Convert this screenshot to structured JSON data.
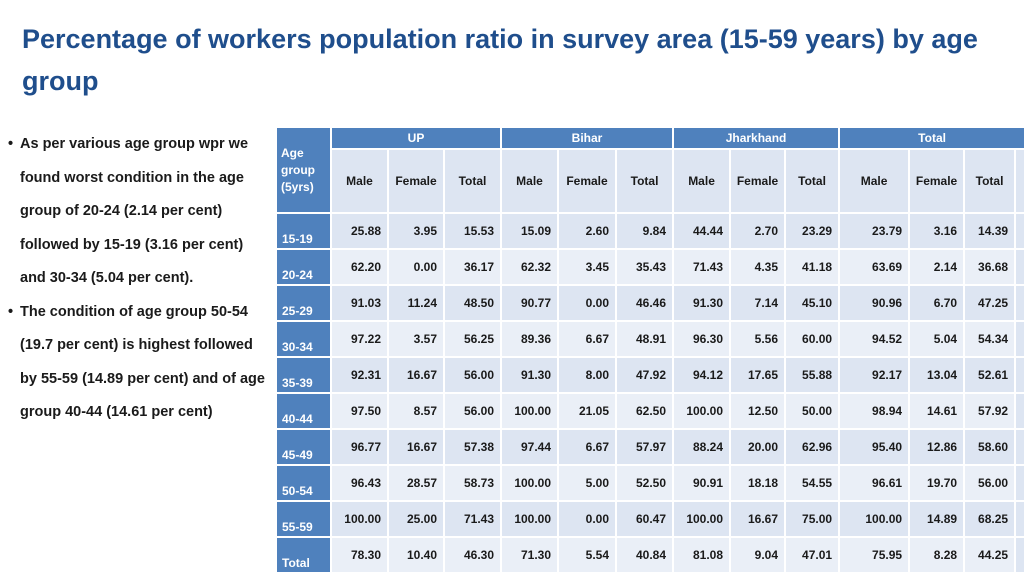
{
  "title": "Percentage of workers population ratio in survey area (15-59 years) by age group",
  "bullets": [
    "As per various age group wpr we found worst condition in the age group of 20-24 (2.14 per cent) followed by 15-19 (3.16 per cent) and 30-34 (5.04 per cent).",
    "The condition of age group 50-54 (19.7 per cent) is highest followed by 55-59 (14.89 per cent) and of age group 40-44 (14.61 per cent)"
  ],
  "table": {
    "age_header": "Age group (5yrs)",
    "states": [
      "UP",
      "Bihar",
      "Jharkhand",
      "Total"
    ],
    "sub_headers": [
      "Male",
      "Female",
      "Total"
    ],
    "rows": [
      {
        "age": "15-19",
        "values": [
          "25.88",
          "3.95",
          "15.53",
          "15.09",
          "2.60",
          "9.84",
          "44.44",
          "2.70",
          "23.29",
          "23.79",
          "3.16",
          "14.39"
        ]
      },
      {
        "age": "20-24",
        "values": [
          "62.20",
          "0.00",
          "36.17",
          "62.32",
          "3.45",
          "35.43",
          "71.43",
          "4.35",
          "41.18",
          "63.69",
          "2.14",
          "36.68"
        ]
      },
      {
        "age": "25-29",
        "values": [
          "91.03",
          "11.24",
          "48.50",
          "90.77",
          "0.00",
          "46.46",
          "91.30",
          "7.14",
          "45.10",
          "90.96",
          "6.70",
          "47.25"
        ]
      },
      {
        "age": "30-34",
        "values": [
          "97.22",
          "3.57",
          "56.25",
          "89.36",
          "6.67",
          "48.91",
          "96.30",
          "5.56",
          "60.00",
          "94.52",
          "5.04",
          "54.34"
        ]
      },
      {
        "age": "35-39",
        "values": [
          "92.31",
          "16.67",
          "56.00",
          "91.30",
          "8.00",
          "47.92",
          "94.12",
          "17.65",
          "55.88",
          "92.17",
          "13.04",
          "52.61"
        ]
      },
      {
        "age": "40-44",
        "values": [
          "97.50",
          "8.57",
          "56.00",
          "100.00",
          "21.05",
          "62.50",
          "100.00",
          "12.50",
          "50.00",
          "98.94",
          "14.61",
          "57.92"
        ]
      },
      {
        "age": "45-49",
        "values": [
          "96.77",
          "16.67",
          "57.38",
          "97.44",
          "6.67",
          "57.97",
          "88.24",
          "20.00",
          "62.96",
          "95.40",
          "12.86",
          "58.60"
        ]
      },
      {
        "age": "50-54",
        "values": [
          "96.43",
          "28.57",
          "58.73",
          "100.00",
          "5.00",
          "52.50",
          "90.91",
          "18.18",
          "54.55",
          "96.61",
          "19.70",
          "56.00"
        ]
      },
      {
        "age": "55-59",
        "values": [
          "100.00",
          "25.00",
          "71.43",
          "100.00",
          "0.00",
          "60.47",
          "100.00",
          "16.67",
          "75.00",
          "100.00",
          "14.89",
          "68.25"
        ]
      },
      {
        "age": "Total",
        "values": [
          "78.30",
          "10.40",
          "46.30",
          "71.30",
          "5.54",
          "40.84",
          "81.08",
          "9.04",
          "47.01",
          "75.95",
          "8.28",
          "44.25"
        ]
      }
    ]
  }
}
